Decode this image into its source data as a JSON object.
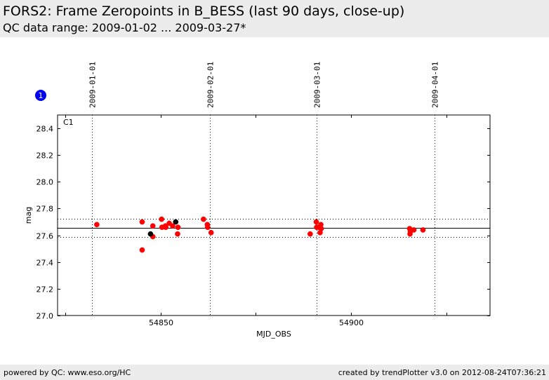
{
  "header": {
    "title": "FORS2: Frame Zeropoints in B_BESS (last 90 days, close-up)",
    "subtitle": "QC data range: 2009-01-02 ... 2009-03-27*"
  },
  "footer": {
    "left": "powered by QC: www.eso.org/HC",
    "right": "created by trendPlotter v3.0 on 2012-08-24T07:36:21"
  },
  "badge": {
    "label": "1",
    "color": "#0000ee"
  },
  "chart_data": {
    "type": "scatter",
    "panel_label": "C1",
    "xlabel": "MJD_OBS",
    "ylabel": "mag",
    "xlim": [
      54823,
      54936.5
    ],
    "ylim": [
      27.0,
      28.5
    ],
    "x_ticks": [
      54850,
      54900
    ],
    "x_minor_ticks": [
      54825,
      54875,
      54925
    ],
    "y_ticks": [
      27.0,
      27.2,
      27.4,
      27.6,
      27.8,
      28.0,
      28.2,
      28.4
    ],
    "date_markers": [
      {
        "label": "2009-01-01",
        "x": 54832
      },
      {
        "label": "2009-02-01",
        "x": 54863
      },
      {
        "label": "2009-03-01",
        "x": 54891
      },
      {
        "label": "2009-04-01",
        "x": 54922
      }
    ],
    "reference_lines": {
      "mean": 27.655,
      "upper": 27.725,
      "lower": 27.585
    },
    "colors": {
      "main": "#ff0000",
      "other": "#000000",
      "grid": "#000000"
    },
    "series": [
      {
        "color": "#ff0000",
        "points": [
          [
            54833.3,
            27.68
          ],
          [
            54845.2,
            27.7
          ],
          [
            54845.2,
            27.49
          ],
          [
            54848.0,
            27.67
          ],
          [
            54848.0,
            27.59
          ],
          [
            54850.3,
            27.72
          ],
          [
            54850.4,
            27.66
          ],
          [
            54851.3,
            27.67
          ],
          [
            54851.4,
            27.66
          ],
          [
            54852.3,
            27.69
          ],
          [
            54853.2,
            27.67
          ],
          [
            54854.5,
            27.61
          ],
          [
            54854.6,
            27.66
          ],
          [
            54861.3,
            27.72
          ],
          [
            54862.3,
            27.68
          ],
          [
            54862.4,
            27.66
          ],
          [
            54863.3,
            27.62
          ],
          [
            54889.3,
            27.61
          ],
          [
            54890.9,
            27.7
          ],
          [
            54891.0,
            27.66
          ],
          [
            54891.6,
            27.66
          ],
          [
            54891.9,
            27.62
          ],
          [
            54892.1,
            27.68
          ],
          [
            54892.2,
            27.65
          ],
          [
            54915.4,
            27.65
          ],
          [
            54915.5,
            27.61
          ],
          [
            54915.6,
            27.63
          ],
          [
            54916.5,
            27.64
          ],
          [
            54918.9,
            27.64
          ]
        ]
      },
      {
        "color": "#000000",
        "points": [
          [
            54847.4,
            27.61
          ],
          [
            54854.0,
            27.7
          ]
        ]
      }
    ]
  }
}
